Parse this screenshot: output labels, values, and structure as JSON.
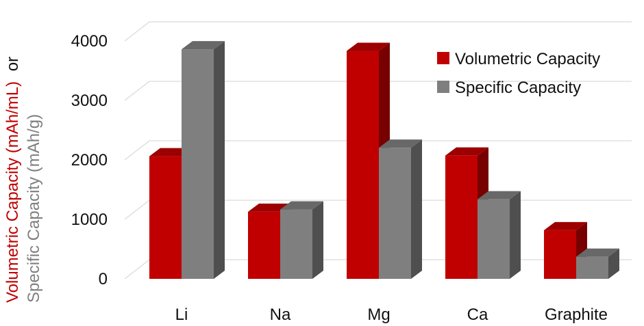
{
  "chart_data": {
    "type": "bar",
    "categories": [
      "Li",
      "Na",
      "Mg",
      "Ca",
      "Graphite"
    ],
    "series": [
      {
        "name": "Volumetric Capacity",
        "values": [
          2062,
          1128,
          3833,
          2073,
          818
        ],
        "color": "#C00000"
      },
      {
        "name": "Specific Capacity",
        "values": [
          3861,
          1166,
          2205,
          1337,
          372
        ],
        "color": "#7F7F7F"
      }
    ],
    "ylabel_line1": "Volumetric Capacity (mAh/mL)",
    "ylabel_line1_suffix": "or",
    "ylabel_line2": "Specific Capacity (mAh/g)",
    "ylabel_line1_color": "#C00000",
    "ylabel_line2_color": "#7F7F7F",
    "ylim": [
      0,
      4000
    ],
    "yticks": [
      0,
      1000,
      2000,
      3000,
      4000
    ],
    "grid": true,
    "legend_position": "top-right",
    "style": "3d-column"
  }
}
